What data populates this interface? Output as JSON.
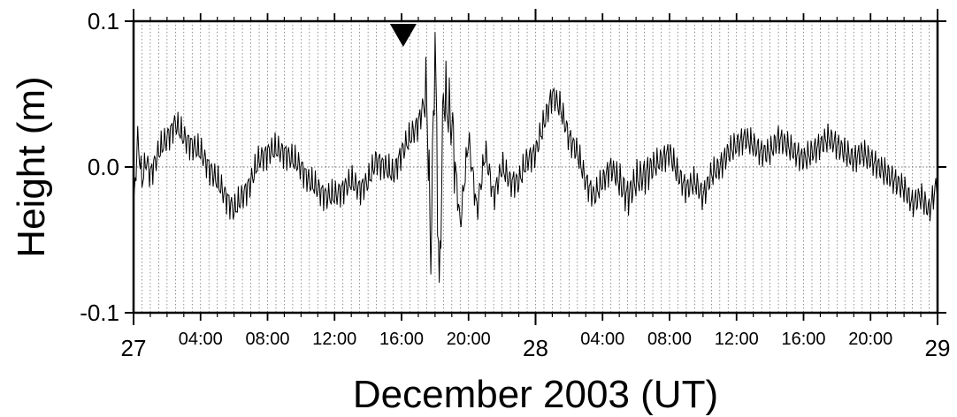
{
  "chart_data": {
    "type": "line",
    "title": "",
    "xlabel": "December 2003 (UT)",
    "ylabel": "Height (m)",
    "ylim": [
      -0.1,
      0.1
    ],
    "xlim_hours": [
      0,
      48
    ],
    "y_ticks": [
      {
        "value": 0.1,
        "label": "0.1"
      },
      {
        "value": 0.0,
        "label": "0.0"
      },
      {
        "value": -0.1,
        "label": "-0.1"
      }
    ],
    "x_major_ticks": [
      {
        "hour": 0,
        "label": "27"
      },
      {
        "hour": 24,
        "label": "28"
      },
      {
        "hour": 48,
        "label": "29"
      }
    ],
    "x_minor_ticks": [
      {
        "hour": 4,
        "label": "04:00"
      },
      {
        "hour": 8,
        "label": "08:00"
      },
      {
        "hour": 12,
        "label": "12:00"
      },
      {
        "hour": 16,
        "label": "16:00"
      },
      {
        "hour": 20,
        "label": "20:00"
      },
      {
        "hour": 28,
        "label": "04:00"
      },
      {
        "hour": 32,
        "label": "08:00"
      },
      {
        "hour": 36,
        "label": "12:00"
      },
      {
        "hour": 40,
        "label": "16:00"
      },
      {
        "hour": 44,
        "label": "20:00"
      }
    ],
    "grid": "vertical dotted every 30 min; dotted zero line",
    "event_marker": {
      "hour": 16.1,
      "shape": "inverted-triangle",
      "color": "#000000"
    },
    "series": [
      {
        "color": "#000000",
        "x_hours": [
          0,
          0.25,
          0.5,
          0.75,
          1,
          1.5,
          2,
          2.5,
          3,
          3.5,
          4,
          4.5,
          5,
          5.5,
          6,
          6.5,
          7,
          7.5,
          8,
          8.5,
          9,
          9.5,
          10,
          10.5,
          11,
          11.5,
          12,
          12.5,
          13,
          13.5,
          14,
          14.5,
          15,
          15.5,
          16,
          16.5,
          17,
          17.5,
          17.75,
          18,
          18.25,
          18.5,
          19,
          19.5,
          20,
          20.5,
          21,
          21.5,
          22,
          22.5,
          23,
          23.5,
          24,
          24.5,
          25,
          25.5,
          26,
          26.5,
          27,
          27.5,
          28,
          28.5,
          29,
          29.5,
          30,
          30.5,
          31,
          31.5,
          32,
          32.5,
          33,
          33.5,
          34,
          34.5,
          35,
          35.5,
          36,
          36.5,
          37,
          37.5,
          38,
          38.5,
          39,
          39.5,
          40,
          40.5,
          41,
          41.5,
          42,
          42.5,
          43,
          43.5,
          44,
          44.5,
          45,
          45.5,
          46,
          46.5,
          47,
          47.5,
          48
        ],
        "values": [
          -0.03,
          0.02,
          -0.01,
          0.005,
          -0.005,
          0.01,
          0.02,
          0.03,
          0.02,
          0.015,
          0.01,
          0.0,
          -0.01,
          -0.02,
          -0.03,
          -0.02,
          -0.01,
          0.005,
          0.01,
          0.012,
          0.01,
          0.005,
          0.0,
          -0.01,
          -0.015,
          -0.02,
          -0.02,
          -0.015,
          -0.01,
          -0.015,
          -0.01,
          0.005,
          0.0,
          -0.005,
          0.01,
          0.02,
          0.03,
          0.05,
          -0.06,
          0.09,
          -0.09,
          0.05,
          0.03,
          -0.04,
          0.02,
          -0.03,
          0.01,
          -0.02,
          0.0,
          -0.01,
          -0.01,
          0.005,
          0.01,
          0.03,
          0.05,
          0.04,
          0.02,
          0.01,
          -0.01,
          -0.02,
          -0.01,
          0.0,
          -0.01,
          -0.02,
          -0.01,
          -0.005,
          0.0,
          0.005,
          0.01,
          -0.005,
          -0.015,
          -0.01,
          -0.02,
          -0.005,
          0.0,
          0.01,
          0.015,
          0.02,
          0.015,
          0.01,
          0.01,
          0.02,
          0.015,
          0.01,
          0.005,
          0.01,
          0.015,
          0.02,
          0.015,
          0.01,
          0.005,
          0.01,
          0.005,
          0.0,
          -0.005,
          -0.01,
          -0.015,
          -0.025,
          -0.02,
          -0.03,
          -0.01
        ]
      }
    ]
  }
}
